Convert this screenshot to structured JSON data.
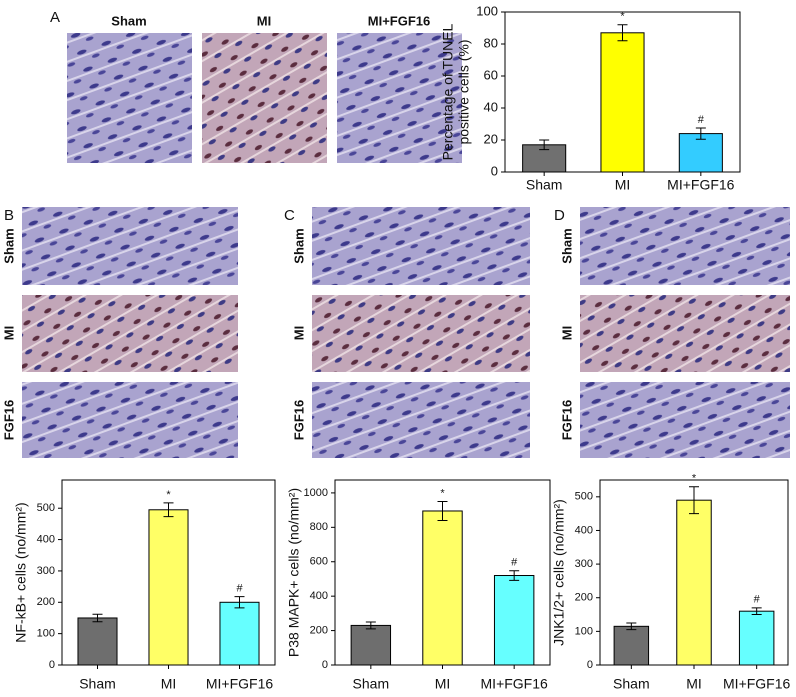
{
  "panels": {
    "labels": [
      "A",
      "B",
      "C",
      "D"
    ],
    "a_images": [
      "Sham",
      "MI",
      "MI+FGF16"
    ],
    "row_labels": [
      "Sham",
      "MI",
      "FGF16"
    ]
  },
  "chart_data": [
    {
      "type": "bar",
      "categories": [
        "Sham",
        "MI",
        "MI+FGF16"
      ],
      "values": [
        17,
        87,
        24
      ],
      "errors": [
        3,
        5,
        3.5
      ],
      "annotations": [
        null,
        "*",
        "#"
      ],
      "colors": [
        "#707070",
        "#ffff00",
        "#33ccff"
      ],
      "y_label": [
        "Percentage of TUNEL",
        "positive cells (%)"
      ],
      "ylim": [
        0,
        100
      ],
      "yticks": [
        0,
        20,
        40,
        60,
        80,
        100
      ]
    },
    {
      "type": "bar",
      "categories": [
        "Sham",
        "MI",
        "MI+FGF16"
      ],
      "values": [
        150,
        495,
        200
      ],
      "errors": [
        12,
        22,
        18
      ],
      "annotations": [
        null,
        "*",
        "#"
      ],
      "colors": [
        "#6e6e6e",
        "#ffff66",
        "#66ffff"
      ],
      "y_label": [
        "NF-kB+ cells (no/mm²)"
      ],
      "ylim": [
        0,
        590
      ],
      "yticks": [
        0,
        100,
        200,
        300,
        400,
        500
      ]
    },
    {
      "type": "bar",
      "categories": [
        "Sham",
        "MI",
        "MI+FGF16"
      ],
      "values": [
        230,
        895,
        520
      ],
      "errors": [
        20,
        55,
        28
      ],
      "annotations": [
        null,
        "*",
        "#"
      ],
      "colors": [
        "#6e6e6e",
        "#ffff66",
        "#66ffff"
      ],
      "y_label": [
        "P38 MAPK+ cells (no/mm²)"
      ],
      "ylim": [
        0,
        1075
      ],
      "yticks": [
        0,
        200,
        400,
        600,
        800,
        1000
      ]
    },
    {
      "type": "bar",
      "categories": [
        "Sham",
        "MI",
        "MI+FGF16"
      ],
      "values": [
        115,
        490,
        160
      ],
      "errors": [
        10,
        40,
        10
      ],
      "annotations": [
        null,
        "*",
        "#"
      ],
      "colors": [
        "#6e6e6e",
        "#ffff66",
        "#66ffff"
      ],
      "y_label": [
        "JNK1/2+ cells (no/mm²)"
      ],
      "ylim": [
        0,
        550
      ],
      "yticks": [
        0,
        100,
        200,
        300,
        400,
        500
      ]
    }
  ]
}
